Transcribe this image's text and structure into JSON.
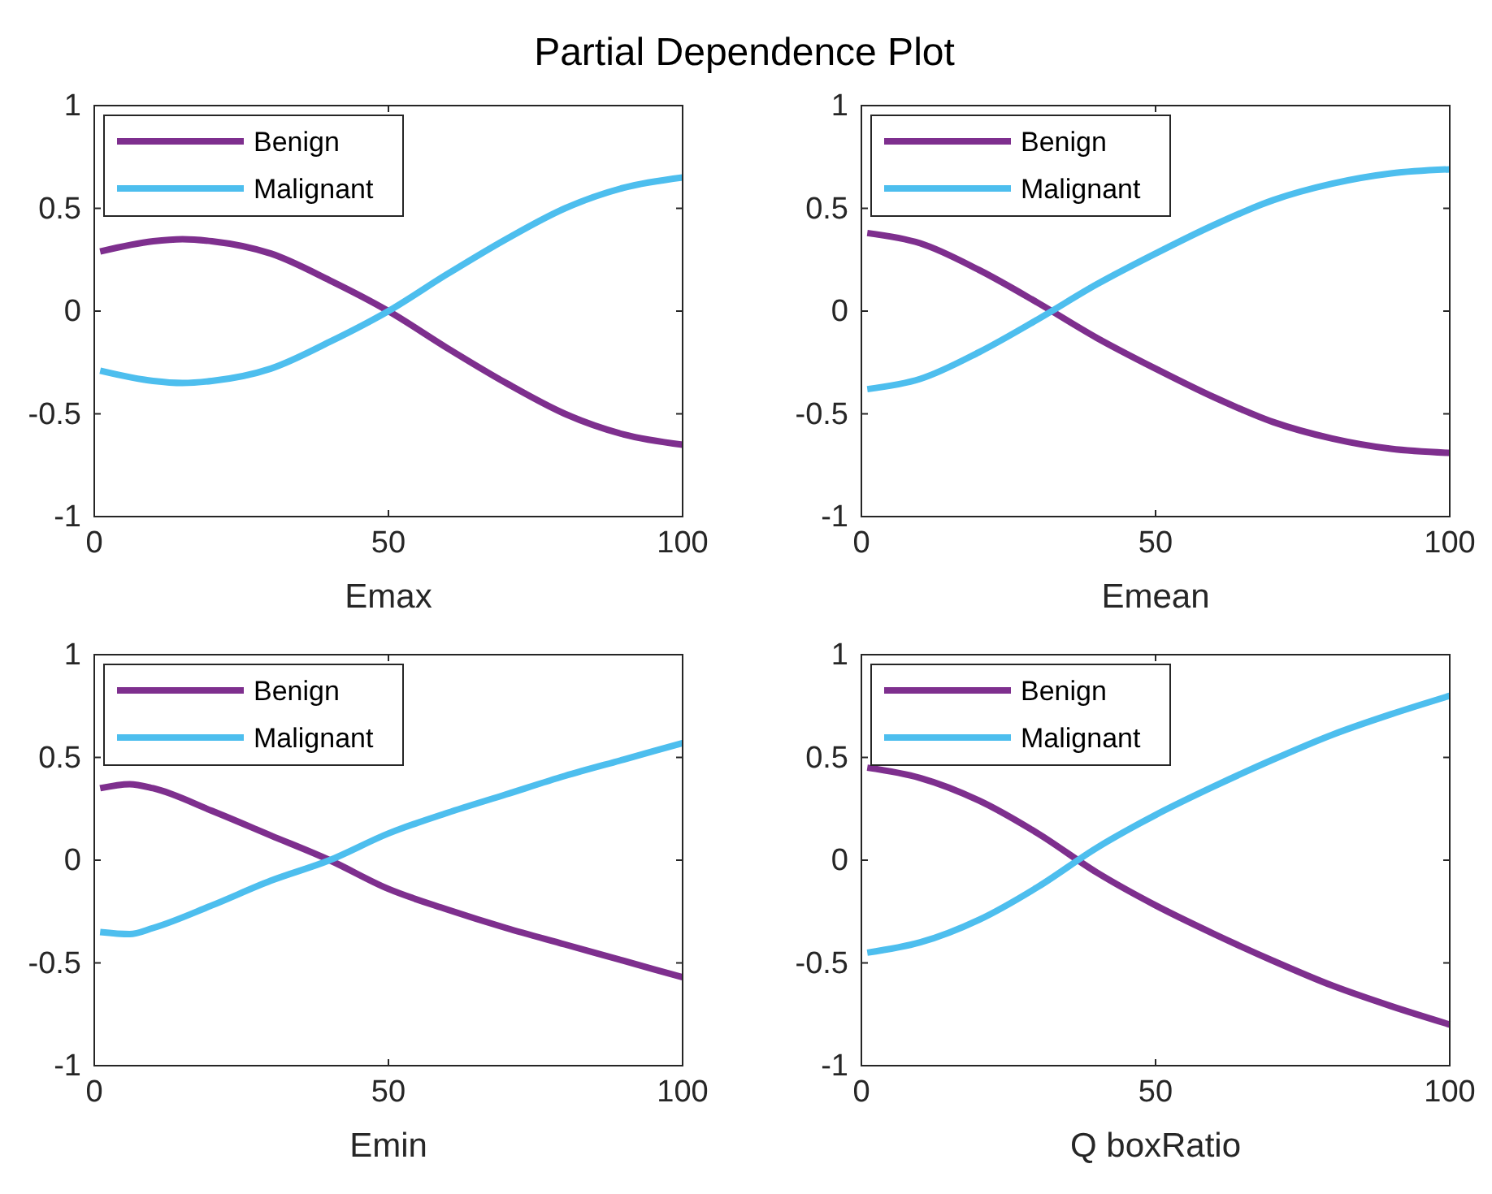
{
  "chart_data": [
    {
      "type": "line",
      "title": "Partial Dependence Plot",
      "xlabel": "Emax",
      "xlim": [
        0,
        100
      ],
      "xticks": [
        0,
        50,
        100
      ],
      "ylim": [
        -1,
        1
      ],
      "yticks": [
        -1,
        -0.5,
        0,
        0.5,
        1
      ],
      "legend": "top left",
      "grid": false,
      "x": [
        1,
        10,
        15,
        20,
        30,
        40,
        50,
        60,
        70,
        80,
        90,
        100
      ],
      "series": [
        {
          "name": "Benign",
          "color": "#7e2f8e",
          "values": [
            0.29,
            0.34,
            0.35,
            0.34,
            0.28,
            0.15,
            0.0,
            -0.18,
            -0.35,
            -0.5,
            -0.6,
            -0.65
          ]
        },
        {
          "name": "Malignant",
          "color": "#4dbeee",
          "values": [
            -0.29,
            -0.34,
            -0.35,
            -0.34,
            -0.28,
            -0.15,
            0.0,
            0.18,
            0.35,
            0.5,
            0.6,
            0.65
          ]
        }
      ]
    },
    {
      "type": "line",
      "xlabel": "Emean",
      "xlim": [
        0,
        100
      ],
      "xticks": [
        0,
        50,
        100
      ],
      "ylim": [
        -1,
        1
      ],
      "yticks": [
        -1,
        -0.5,
        0,
        0.5,
        1
      ],
      "legend": "top left",
      "grid": false,
      "x": [
        1,
        10,
        20,
        30,
        40,
        50,
        60,
        70,
        80,
        90,
        100
      ],
      "series": [
        {
          "name": "Benign",
          "color": "#7e2f8e",
          "values": [
            0.38,
            0.33,
            0.2,
            0.04,
            -0.13,
            -0.28,
            -0.42,
            -0.54,
            -0.62,
            -0.67,
            -0.69
          ]
        },
        {
          "name": "Malignant",
          "color": "#4dbeee",
          "values": [
            -0.38,
            -0.33,
            -0.2,
            -0.04,
            0.13,
            0.28,
            0.42,
            0.54,
            0.62,
            0.67,
            0.69
          ]
        }
      ]
    },
    {
      "type": "line",
      "xlabel": "Emin",
      "xlim": [
        0,
        100
      ],
      "xticks": [
        0,
        50,
        100
      ],
      "ylim": [
        -1,
        1
      ],
      "yticks": [
        -1,
        -0.5,
        0,
        0.5,
        1
      ],
      "legend": "top left",
      "grid": false,
      "x": [
        1,
        6,
        10,
        20,
        30,
        40,
        50,
        60,
        70,
        80,
        90,
        100
      ],
      "series": [
        {
          "name": "Benign",
          "color": "#7e2f8e",
          "values": [
            0.35,
            0.37,
            0.35,
            0.24,
            0.12,
            0.0,
            -0.14,
            -0.24,
            -0.33,
            -0.41,
            -0.49,
            -0.57
          ]
        },
        {
          "name": "Malignant",
          "color": "#4dbeee",
          "values": [
            -0.35,
            -0.36,
            -0.33,
            -0.22,
            -0.1,
            0.0,
            0.13,
            0.23,
            0.32,
            0.41,
            0.49,
            0.57
          ]
        }
      ]
    },
    {
      "type": "line",
      "xlabel": "Q boxRatio",
      "xlim": [
        0,
        100
      ],
      "xticks": [
        0,
        50,
        100
      ],
      "ylim": [
        -1,
        1
      ],
      "yticks": [
        -1,
        -0.5,
        0,
        0.5,
        1
      ],
      "legend": "top left",
      "grid": false,
      "x": [
        1,
        10,
        20,
        30,
        40,
        50,
        60,
        70,
        80,
        90,
        100
      ],
      "series": [
        {
          "name": "Benign",
          "color": "#7e2f8e",
          "values": [
            0.45,
            0.4,
            0.29,
            0.13,
            -0.06,
            -0.22,
            -0.36,
            -0.49,
            -0.61,
            -0.71,
            -0.8
          ]
        },
        {
          "name": "Malignant",
          "color": "#4dbeee",
          "values": [
            -0.45,
            -0.4,
            -0.29,
            -0.13,
            0.06,
            0.22,
            0.36,
            0.49,
            0.61,
            0.71,
            0.8
          ]
        }
      ]
    }
  ]
}
